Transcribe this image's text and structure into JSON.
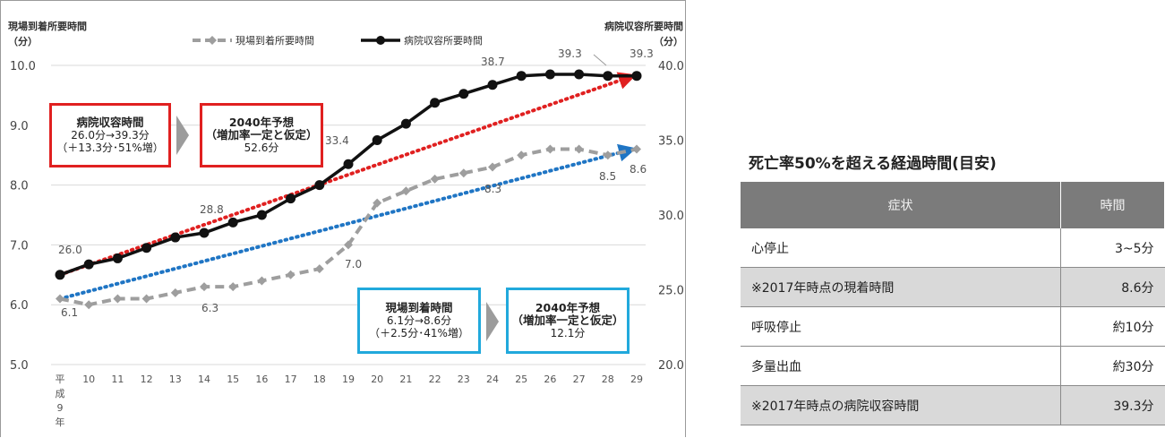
{
  "chart_data": {
    "type": "line",
    "title": "",
    "left_axis": {
      "title": "現場到着所要時間",
      "unit": "（分）",
      "ylim": [
        5.0,
        10.0
      ],
      "ticks": [
        "10.0",
        "9.0",
        "8.0",
        "7.0",
        "6.0",
        "5.0"
      ]
    },
    "right_axis": {
      "title": "病院収容所要時間",
      "unit": "（分）",
      "ylim": [
        20.0,
        40.0
      ],
      "ticks": [
        "40.0",
        "35.0",
        "30.0",
        "25.0",
        "20.0"
      ]
    },
    "x_first_label": [
      "平",
      "成",
      "9",
      "年"
    ],
    "x_labels": [
      "10",
      "11",
      "12",
      "13",
      "14",
      "15",
      "16",
      "17",
      "18",
      "19",
      "20",
      "21",
      "22",
      "23",
      "24",
      "25",
      "26",
      "27",
      "28",
      "29"
    ],
    "x": [
      9,
      10,
      11,
      12,
      13,
      14,
      15,
      16,
      17,
      18,
      19,
      20,
      21,
      22,
      23,
      24,
      25,
      26,
      27,
      28,
      29
    ],
    "grid": true,
    "legend_position": "top",
    "series": [
      {
        "name": "現場到着所要時間",
        "axis": "left",
        "style": "dashed",
        "color": "#9e9e9e",
        "values": [
          6.1,
          6.0,
          6.1,
          6.1,
          6.2,
          6.3,
          6.3,
          6.4,
          6.5,
          6.6,
          7.0,
          7.7,
          7.9,
          8.1,
          8.2,
          8.3,
          8.5,
          8.6,
          8.6,
          8.5,
          8.6
        ]
      },
      {
        "name": "病院収容所要時間",
        "axis": "right",
        "style": "solid",
        "color": "#111111",
        "values": [
          26.0,
          26.7,
          27.1,
          27.8,
          28.5,
          28.8,
          29.5,
          30.0,
          31.1,
          32.0,
          33.4,
          35.0,
          36.1,
          37.5,
          38.1,
          38.7,
          39.3,
          39.4,
          39.4,
          39.3,
          39.3
        ]
      }
    ],
    "trend_lines": [
      {
        "axis": "right",
        "color": "#e02020",
        "from": [
          9,
          26.0
        ],
        "to": [
          29,
          39.3
        ]
      },
      {
        "axis": "left",
        "color": "#1f75c4",
        "from": [
          9,
          6.1
        ],
        "to": [
          29,
          8.6
        ]
      }
    ],
    "data_labels": [
      {
        "text": "26.0"
      },
      {
        "text": "28.8"
      },
      {
        "text": "33.4"
      },
      {
        "text": "38.7"
      },
      {
        "text": "39.3"
      },
      {
        "text": "39.3"
      },
      {
        "text": "6.1"
      },
      {
        "text": "6.3"
      },
      {
        "text": "7.0"
      },
      {
        "text": "8.3"
      },
      {
        "text": "8.5"
      },
      {
        "text": "8.6"
      }
    ]
  },
  "callouts": {
    "hospital": {
      "title": "病院収容時間",
      "line1": "26.0分→39.3分",
      "line2": "（＋13.3分･51%増）"
    },
    "hospital_forecast": {
      "title": "2040年予想",
      "line1": "（増加率一定と仮定）",
      "line2": "52.6分"
    },
    "arrival": {
      "title": "現場到着時間",
      "line1": "6.1分→8.6分",
      "line2": "（＋2.5分･41%増）"
    },
    "arrival_forecast": {
      "title": "2040年予想",
      "line1": "（増加率一定と仮定）",
      "line2": "12.1分"
    }
  },
  "table": {
    "title": "死亡率50%を超える経過時間(目安)",
    "headers": {
      "symptom": "症状",
      "time": "時間"
    },
    "rows": [
      {
        "symptom": "心停止",
        "time": "3~5分",
        "shaded": false
      },
      {
        "symptom": "※2017年時点の現着時間",
        "time": "8.6分",
        "shaded": true
      },
      {
        "symptom": "呼吸停止",
        "time": "約10分",
        "shaded": false
      },
      {
        "symptom": "多量出血",
        "time": "約30分",
        "shaded": false
      },
      {
        "symptom": "※2017年時点の病院収容時間",
        "time": "39.3分",
        "shaded": true
      }
    ]
  }
}
